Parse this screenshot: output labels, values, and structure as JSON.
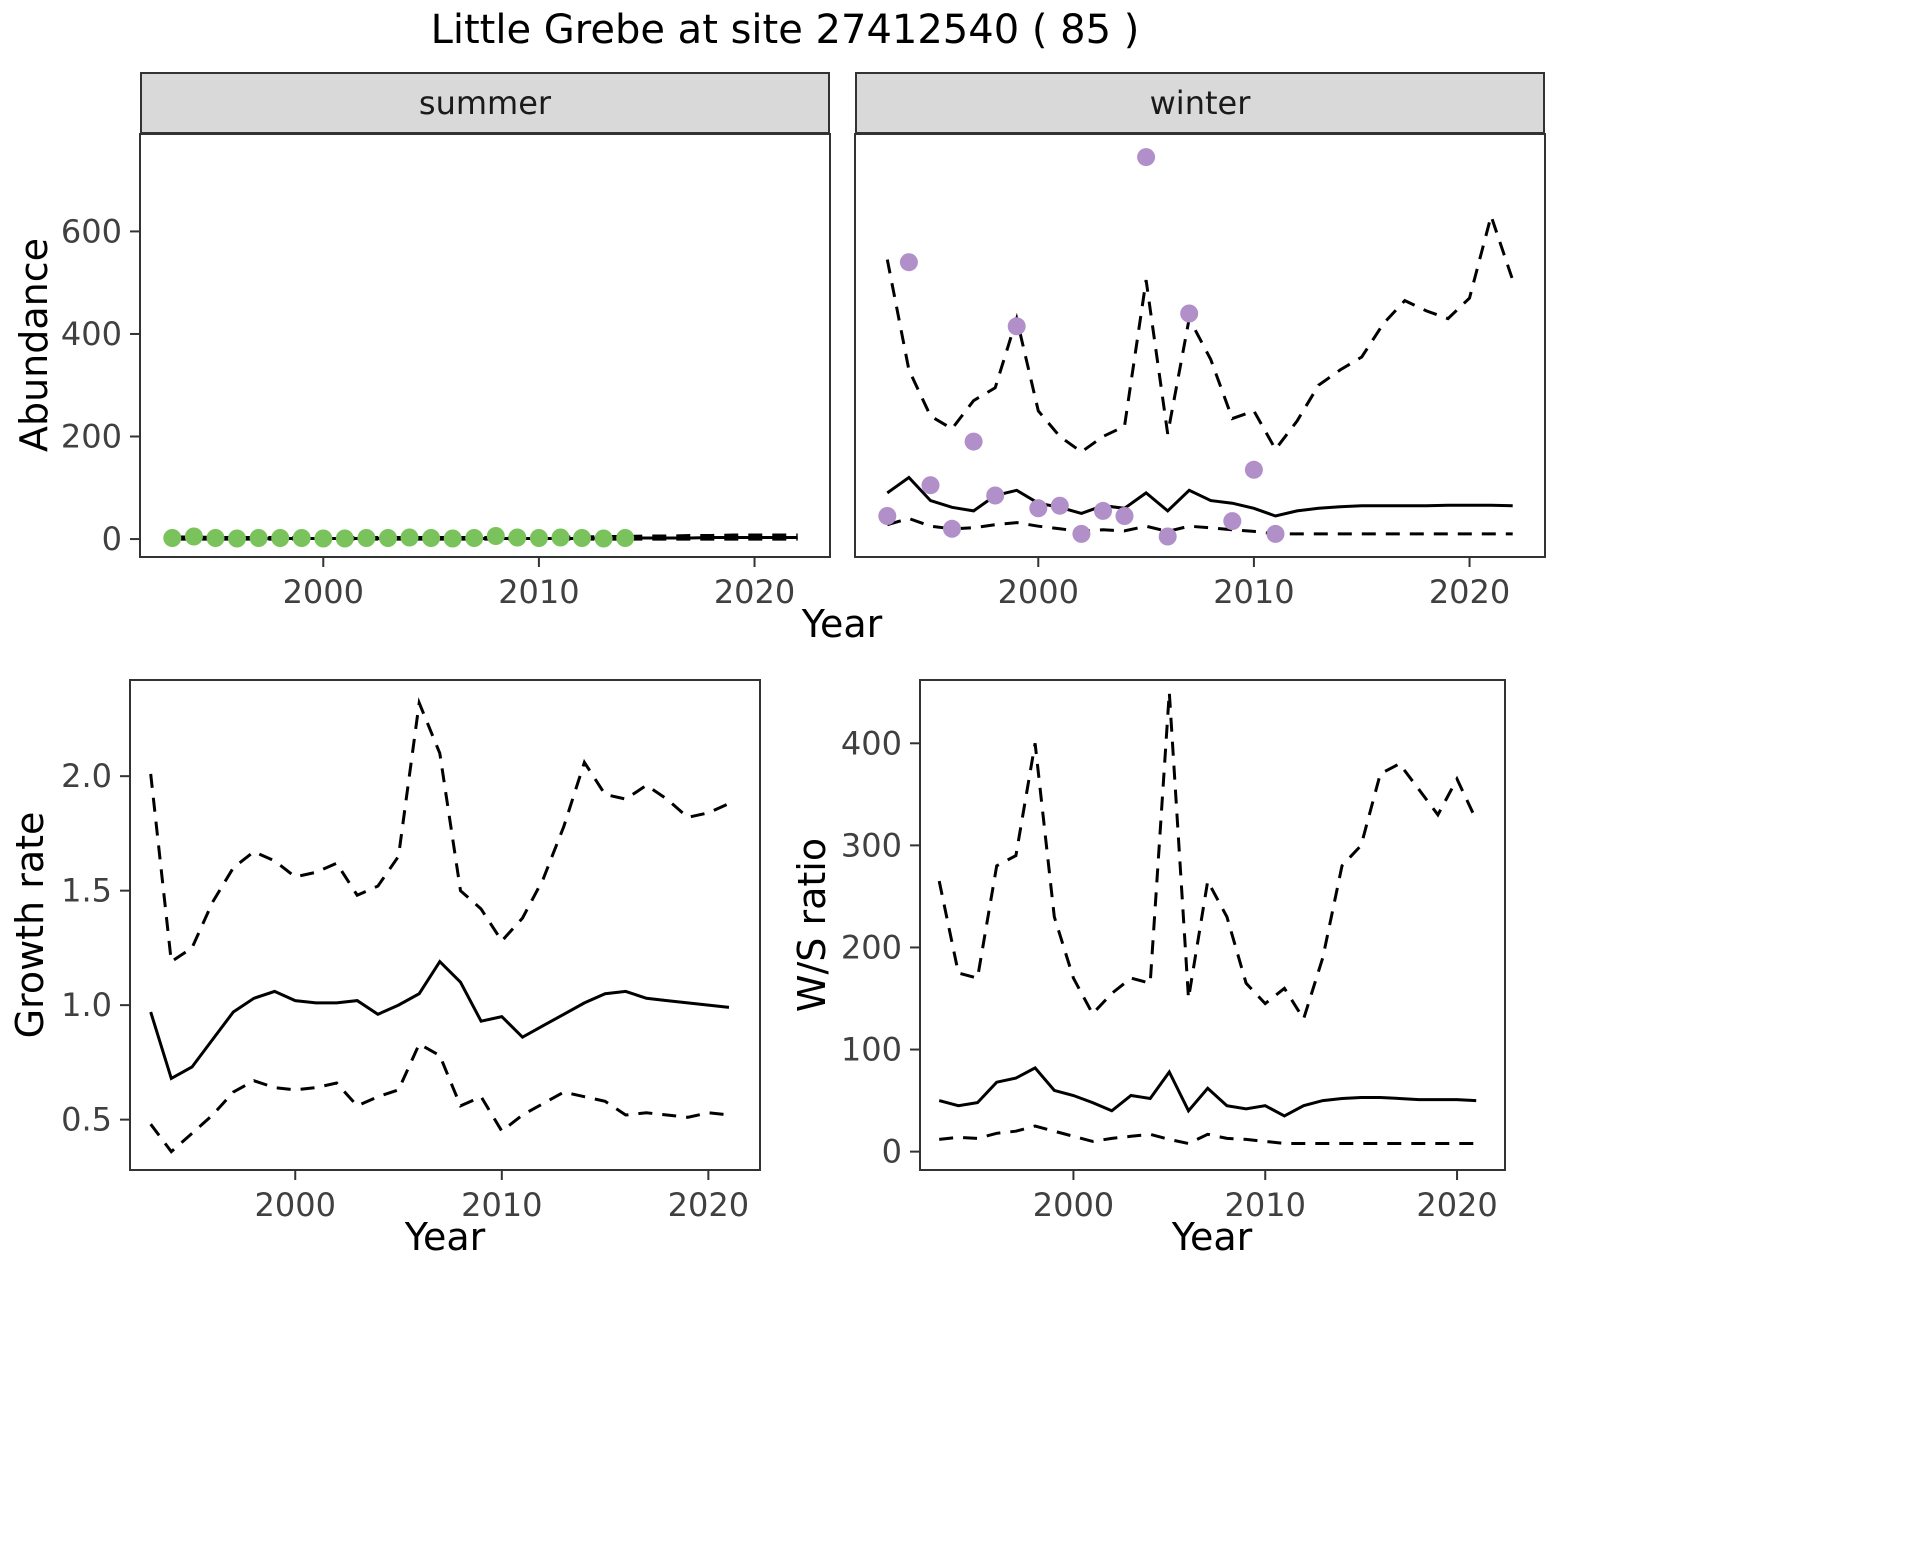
{
  "title": "Little Grebe at site 27412540 ( 85 )",
  "labels": {
    "year": "Year",
    "abundance": "Abundance"
  },
  "colors": {
    "summer_point": "#7ac25c",
    "winter_point": "#b18fc8",
    "line": "#000000",
    "strip_bg": "#d9d9d9",
    "panel_border": "#333333",
    "tick_text": "#404040"
  },
  "chart_data": [
    {
      "id": "abundance-summer",
      "type": "line+scatter",
      "facet_label": "summer",
      "xlim": [
        1991.5,
        2023.5
      ],
      "ylim": [
        -35,
        790
      ],
      "xticks": [
        2000,
        2010,
        2020
      ],
      "xtick_labels": [
        "2000",
        "2010",
        "2020"
      ],
      "yticks": [
        0,
        200,
        400,
        600
      ],
      "ytick_labels": [
        "0",
        "200",
        "400",
        "600"
      ],
      "points": {
        "color": "summer_point",
        "x": [
          1993,
          1994,
          1995,
          1996,
          1997,
          1998,
          1999,
          2000,
          2001,
          2002,
          2003,
          2004,
          2005,
          2006,
          2007,
          2008,
          2009,
          2010,
          2011,
          2012,
          2013,
          2014
        ],
        "y": [
          2,
          5,
          2,
          1,
          2,
          2,
          2,
          1,
          1,
          2,
          2,
          3,
          2,
          1,
          2,
          6,
          3,
          2,
          3,
          2,
          1,
          2
        ]
      },
      "series": [
        {
          "name": "estimate",
          "style": "solid",
          "x": [
            1993,
            1994,
            1995,
            1996,
            1997,
            1998,
            1999,
            2000,
            2001,
            2002,
            2003,
            2004,
            2005,
            2006,
            2007,
            2008,
            2009,
            2010,
            2011,
            2012,
            2013,
            2014,
            2015,
            2016,
            2017,
            2018,
            2019,
            2020,
            2021,
            2022
          ],
          "y": [
            1,
            1,
            1,
            1,
            1,
            1,
            1,
            1,
            1,
            1,
            1,
            1,
            1,
            1,
            1,
            1,
            1,
            1,
            1,
            1,
            2,
            2,
            2,
            2,
            2,
            3,
            3,
            3,
            3,
            3
          ]
        },
        {
          "name": "upper_ci",
          "style": "dashed",
          "x": [
            1993,
            1994,
            1995,
            1996,
            1997,
            1998,
            1999,
            2000,
            2001,
            2002,
            2003,
            2004,
            2005,
            2006,
            2007,
            2008,
            2009,
            2010,
            2011,
            2012,
            2013,
            2014,
            2015,
            2016,
            2017,
            2018,
            2019,
            2020,
            2021,
            2022
          ],
          "y": [
            4,
            4,
            3,
            3,
            3,
            3,
            3,
            3,
            3,
            3,
            3,
            3,
            3,
            3,
            3,
            3,
            3,
            3,
            4,
            4,
            5,
            5,
            6,
            6,
            7,
            7,
            8,
            8,
            8,
            8
          ]
        },
        {
          "name": "lower_ci",
          "style": "dashed",
          "x": [
            1993,
            1994,
            1995,
            1996,
            1997,
            1998,
            1999,
            2000,
            2001,
            2002,
            2003,
            2004,
            2005,
            2006,
            2007,
            2008,
            2009,
            2010,
            2011,
            2012,
            2013,
            2014,
            2015,
            2016,
            2017,
            2018,
            2019,
            2020,
            2021,
            2022
          ],
          "y": [
            0,
            0,
            0,
            0,
            0,
            0,
            0,
            0,
            0,
            0,
            0,
            0,
            0,
            0,
            0,
            0,
            0,
            0,
            0,
            0,
            0,
            0,
            0,
            0,
            0,
            0,
            0,
            0,
            0,
            0
          ]
        }
      ]
    },
    {
      "id": "abundance-winter",
      "type": "line+scatter",
      "facet_label": "winter",
      "xlim": [
        1991.5,
        2023.5
      ],
      "ylim": [
        -35,
        790
      ],
      "xticks": [
        2000,
        2010,
        2020
      ],
      "xtick_labels": [
        "2000",
        "2010",
        "2020"
      ],
      "yticks": [
        0,
        200,
        400,
        600
      ],
      "ytick_labels": [
        "0",
        "200",
        "400",
        "600"
      ],
      "points": {
        "color": "winter_point",
        "x": [
          1993,
          1994,
          1995,
          1996,
          1997,
          1998,
          1999,
          2000,
          2001,
          2002,
          2003,
          2004,
          2005,
          2006,
          2007,
          2009,
          2010,
          2011
        ],
        "y": [
          45,
          540,
          105,
          20,
          190,
          85,
          415,
          60,
          65,
          10,
          55,
          45,
          745,
          5,
          440,
          35,
          135,
          10
        ]
      },
      "series": [
        {
          "name": "estimate",
          "style": "solid",
          "x": [
            1993,
            1994,
            1995,
            1996,
            1997,
            1998,
            1999,
            2000,
            2001,
            2002,
            2003,
            2004,
            2005,
            2006,
            2007,
            2008,
            2009,
            2010,
            2011,
            2012,
            2013,
            2014,
            2015,
            2016,
            2017,
            2018,
            2019,
            2020,
            2021,
            2022
          ],
          "y": [
            90,
            120,
            75,
            62,
            55,
            85,
            95,
            70,
            62,
            50,
            65,
            60,
            90,
            55,
            95,
            75,
            70,
            60,
            45,
            55,
            60,
            63,
            65,
            65,
            65,
            65,
            66,
            66,
            66,
            65
          ]
        },
        {
          "name": "upper_ci",
          "style": "dashed",
          "x": [
            1993,
            1994,
            1995,
            1996,
            1997,
            1998,
            1999,
            2000,
            2001,
            2002,
            2003,
            2004,
            2005,
            2006,
            2007,
            2008,
            2009,
            2010,
            2011,
            2012,
            2013,
            2014,
            2015,
            2016,
            2017,
            2018,
            2019,
            2020,
            2021,
            2022
          ],
          "y": [
            545,
            330,
            240,
            215,
            270,
            295,
            430,
            250,
            200,
            170,
            200,
            220,
            505,
            205,
            430,
            350,
            235,
            250,
            175,
            230,
            300,
            330,
            355,
            420,
            465,
            445,
            430,
            470,
            630,
            505
          ]
        },
        {
          "name": "lower_ci",
          "style": "dashed",
          "x": [
            1993,
            1994,
            1995,
            1996,
            1997,
            1998,
            1999,
            2000,
            2001,
            2002,
            2003,
            2004,
            2005,
            2006,
            2007,
            2008,
            2009,
            2010,
            2011,
            2012,
            2013,
            2014,
            2015,
            2016,
            2017,
            2018,
            2019,
            2020,
            2021,
            2022
          ],
          "y": [
            28,
            40,
            25,
            20,
            22,
            28,
            32,
            25,
            20,
            15,
            18,
            16,
            25,
            15,
            25,
            22,
            18,
            15,
            10,
            10,
            10,
            10,
            10,
            10,
            10,
            10,
            10,
            10,
            10,
            10
          ]
        }
      ]
    },
    {
      "id": "growth-rate",
      "type": "line",
      "xlabel": "Year",
      "ylabel": "Growth rate",
      "xlim": [
        1992,
        2022.5
      ],
      "ylim": [
        0.28,
        2.42
      ],
      "xticks": [
        2000,
        2010,
        2020
      ],
      "xtick_labels": [
        "2000",
        "2010",
        "2020"
      ],
      "yticks": [
        0.5,
        1.0,
        1.5,
        2.0
      ],
      "ytick_labels": [
        "0.5",
        "1.0",
        "1.5",
        "2.0"
      ],
      "series": [
        {
          "name": "estimate",
          "style": "solid",
          "x": [
            1993,
            1994,
            1995,
            1996,
            1997,
            1998,
            1999,
            2000,
            2001,
            2002,
            2003,
            2004,
            2005,
            2006,
            2007,
            2008,
            2009,
            2010,
            2011,
            2012,
            2013,
            2014,
            2015,
            2016,
            2017,
            2018,
            2019,
            2020,
            2021
          ],
          "y": [
            0.97,
            0.68,
            0.73,
            0.85,
            0.97,
            1.03,
            1.06,
            1.02,
            1.01,
            1.01,
            1.02,
            0.96,
            1.0,
            1.05,
            1.19,
            1.1,
            0.93,
            0.95,
            0.86,
            0.91,
            0.96,
            1.01,
            1.05,
            1.06,
            1.03,
            1.02,
            1.01,
            1.0,
            0.99
          ]
        },
        {
          "name": "upper_ci",
          "style": "dashed",
          "x": [
            1993,
            1994,
            1995,
            1996,
            1997,
            1998,
            1999,
            2000,
            2001,
            2002,
            2003,
            2004,
            2005,
            2006,
            2007,
            2008,
            2009,
            2010,
            2011,
            2012,
            2013,
            2014,
            2015,
            2016,
            2017,
            2018,
            2019,
            2020,
            2021
          ],
          "y": [
            2.01,
            1.19,
            1.25,
            1.45,
            1.6,
            1.67,
            1.63,
            1.56,
            1.58,
            1.62,
            1.48,
            1.52,
            1.65,
            2.32,
            2.1,
            1.5,
            1.42,
            1.28,
            1.38,
            1.55,
            1.78,
            2.06,
            1.92,
            1.9,
            1.96,
            1.9,
            1.82,
            1.84,
            1.88
          ]
        },
        {
          "name": "lower_ci",
          "style": "dashed",
          "x": [
            1993,
            1994,
            1995,
            1996,
            1997,
            1998,
            1999,
            2000,
            2001,
            2002,
            2003,
            2004,
            2005,
            2006,
            2007,
            2008,
            2009,
            2010,
            2011,
            2012,
            2013,
            2014,
            2015,
            2016,
            2017,
            2018,
            2019,
            2020,
            2021
          ],
          "y": [
            0.48,
            0.36,
            0.44,
            0.52,
            0.62,
            0.67,
            0.64,
            0.63,
            0.64,
            0.66,
            0.56,
            0.6,
            0.63,
            0.83,
            0.78,
            0.56,
            0.6,
            0.45,
            0.52,
            0.57,
            0.62,
            0.6,
            0.58,
            0.52,
            0.53,
            0.52,
            0.51,
            0.53,
            0.52
          ]
        }
      ]
    },
    {
      "id": "ws-ratio",
      "type": "line",
      "xlabel": "Year",
      "ylabel": "W/S ratio",
      "xlim": [
        1992,
        2022.5
      ],
      "ylim": [
        -18,
        462
      ],
      "xticks": [
        2000,
        2010,
        2020
      ],
      "xtick_labels": [
        "2000",
        "2010",
        "2020"
      ],
      "yticks": [
        0,
        100,
        200,
        300,
        400
      ],
      "ytick_labels": [
        "0",
        "100",
        "200",
        "300",
        "400"
      ],
      "series": [
        {
          "name": "estimate",
          "style": "solid",
          "x": [
            1993,
            1994,
            1995,
            1996,
            1997,
            1998,
            1999,
            2000,
            2001,
            2002,
            2003,
            2004,
            2005,
            2006,
            2007,
            2008,
            2009,
            2010,
            2011,
            2012,
            2013,
            2014,
            2015,
            2016,
            2017,
            2018,
            2019,
            2020,
            2021
          ],
          "y": [
            50,
            45,
            48,
            68,
            72,
            82,
            60,
            55,
            48,
            40,
            55,
            52,
            78,
            40,
            62,
            45,
            42,
            45,
            35,
            45,
            50,
            52,
            53,
            53,
            52,
            51,
            51,
            51,
            50
          ]
        },
        {
          "name": "upper_ci",
          "style": "dashed",
          "x": [
            1993,
            1994,
            1995,
            1996,
            1997,
            1998,
            1999,
            2000,
            2001,
            2002,
            2003,
            2004,
            2005,
            2006,
            2007,
            2008,
            2009,
            2010,
            2011,
            2012,
            2013,
            2014,
            2015,
            2016,
            2017,
            2018,
            2019,
            2020,
            2021
          ],
          "y": [
            265,
            175,
            170,
            280,
            290,
            400,
            230,
            170,
            135,
            155,
            170,
            165,
            450,
            150,
            265,
            230,
            165,
            145,
            160,
            130,
            190,
            280,
            300,
            370,
            380,
            355,
            330,
            365,
            325
          ]
        },
        {
          "name": "lower_ci",
          "style": "dashed",
          "x": [
            1993,
            1994,
            1995,
            1996,
            1997,
            1998,
            1999,
            2000,
            2001,
            2002,
            2003,
            2004,
            2005,
            2006,
            2007,
            2008,
            2009,
            2010,
            2011,
            2012,
            2013,
            2014,
            2015,
            2016,
            2017,
            2018,
            2019,
            2020,
            2021
          ],
          "y": [
            12,
            14,
            13,
            18,
            20,
            25,
            20,
            15,
            10,
            13,
            15,
            17,
            12,
            8,
            17,
            13,
            12,
            10,
            8,
            8,
            8,
            8,
            8,
            8,
            8,
            8,
            8,
            8,
            8
          ]
        }
      ]
    }
  ]
}
